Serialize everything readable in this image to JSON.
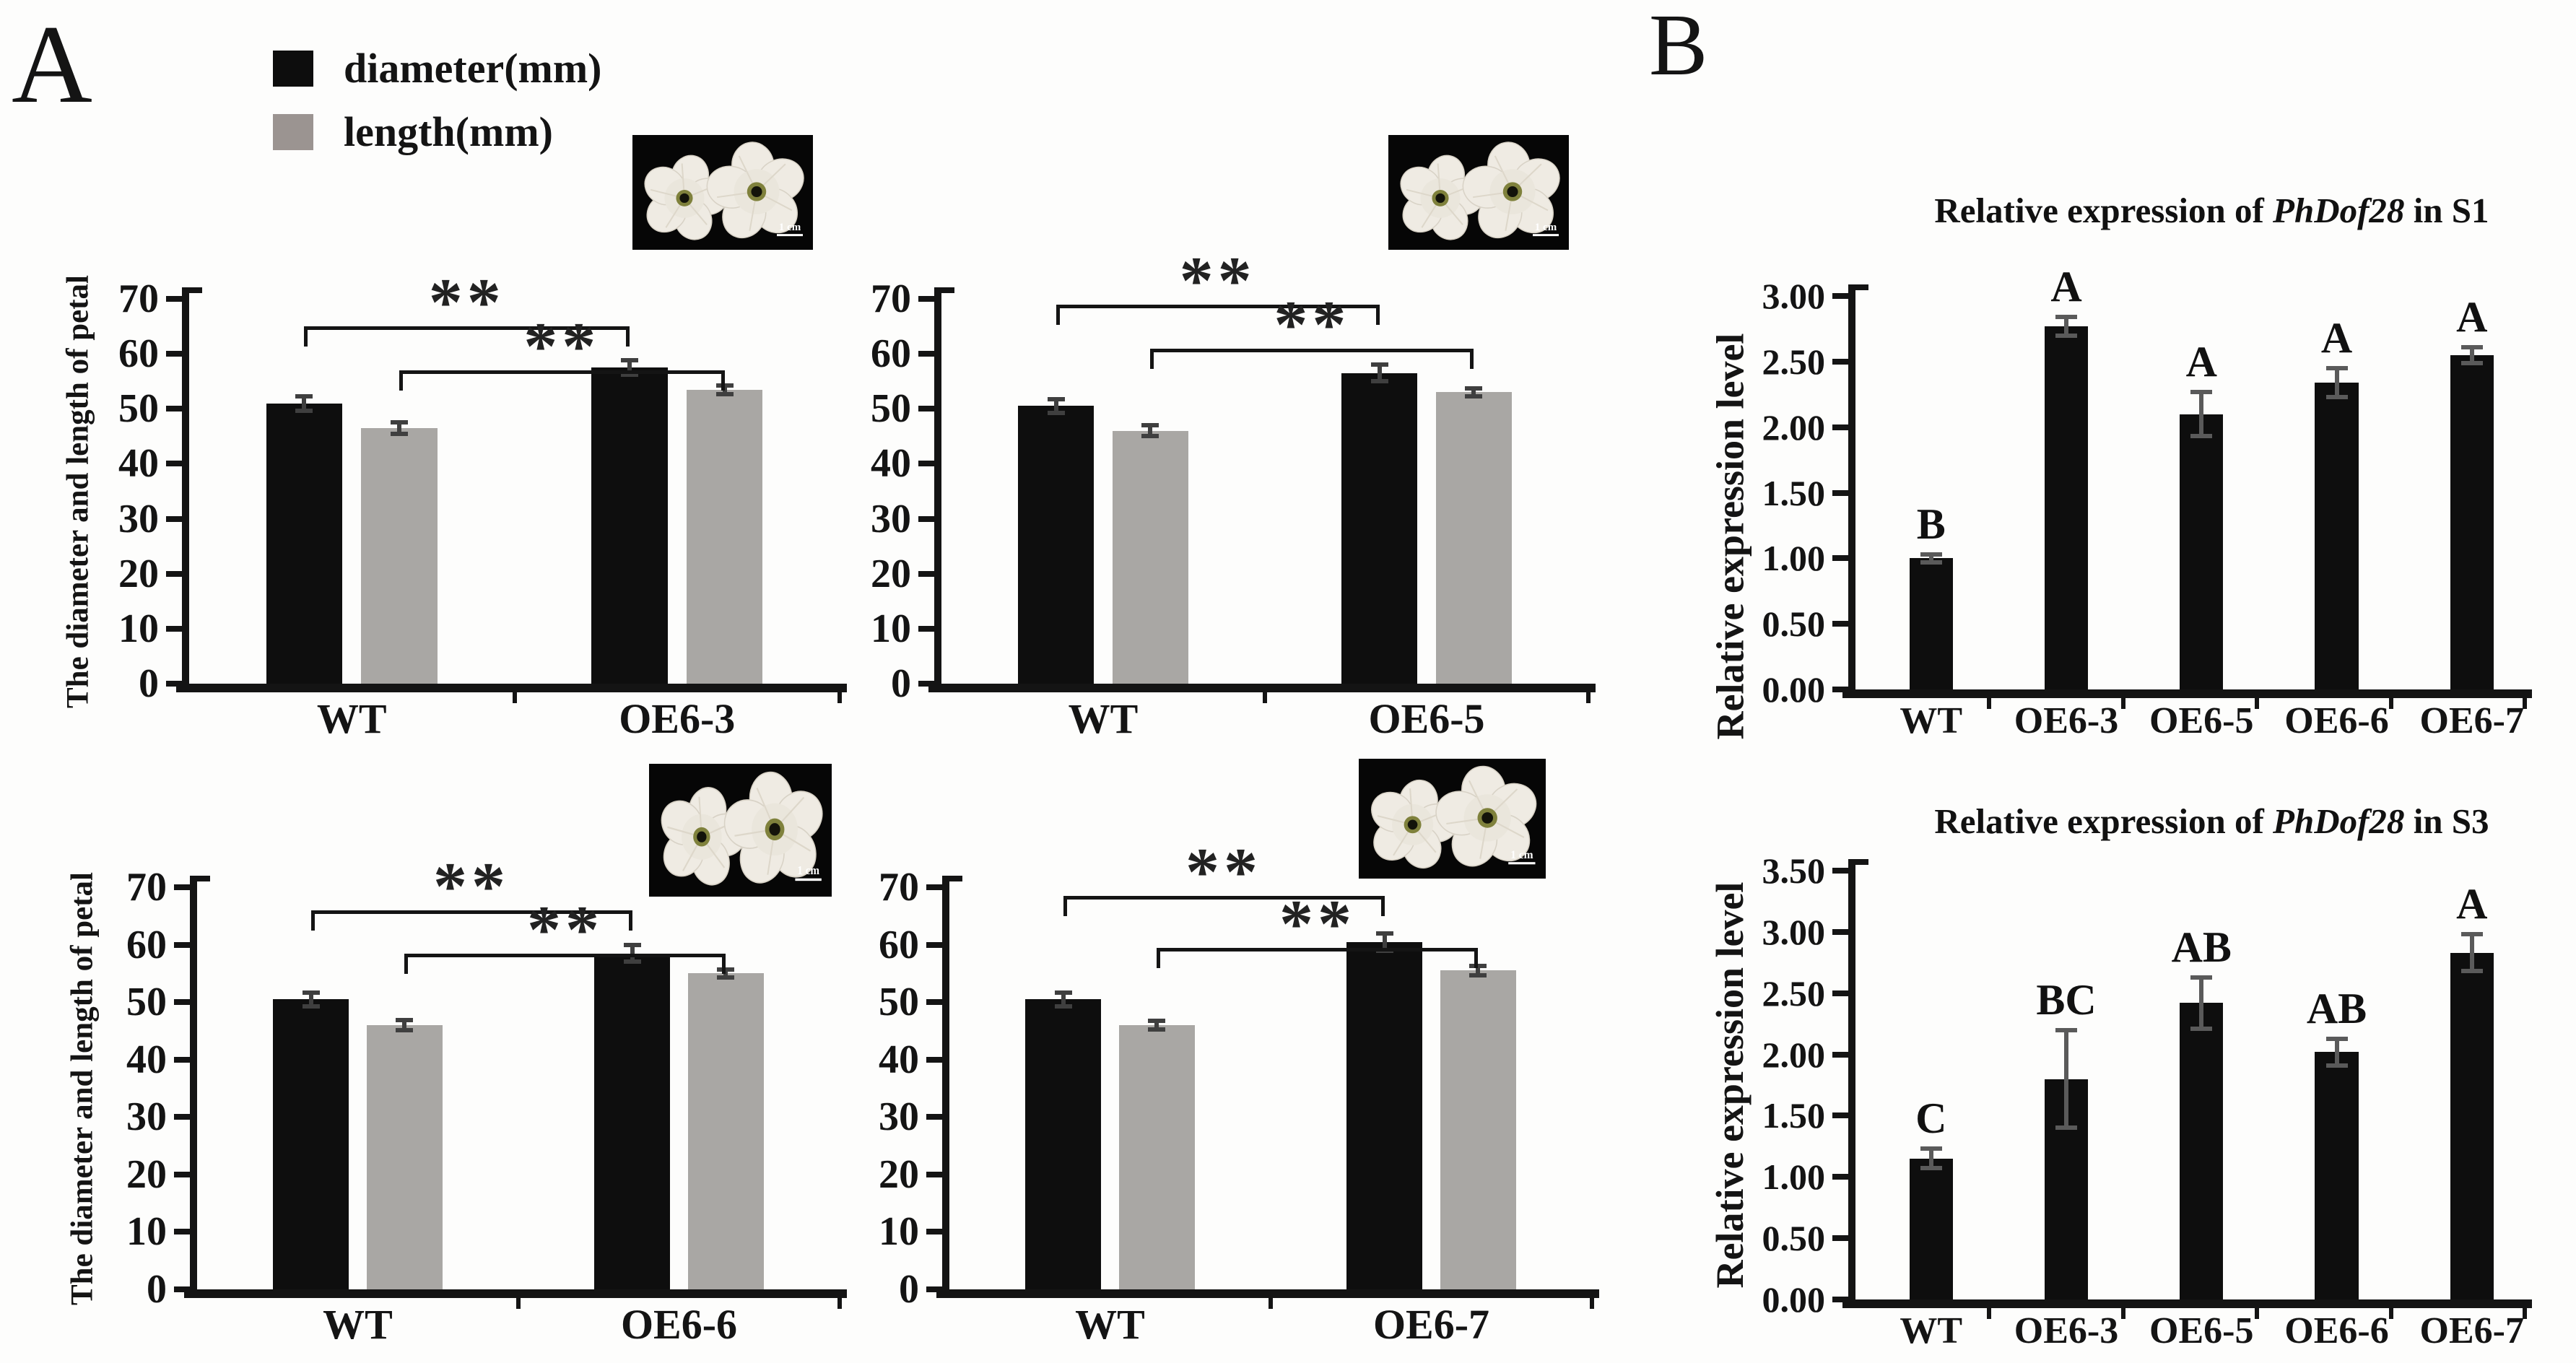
{
  "panel_a": {
    "label": "A",
    "ylabel": "The diameter and length of petal",
    "inset_scale_label": "1 cm",
    "legend": [
      {
        "label": "diameter(mm)",
        "color": "#0d0d0d"
      },
      {
        "label": "length(mm)",
        "color": "#9b9491"
      }
    ]
  },
  "panel_b": {
    "label": "B",
    "ylabel": "Relative expression level"
  },
  "chart_data": [
    {
      "id": "petal-OE6-3",
      "type": "bar",
      "panel": "A",
      "categories": [
        "WT",
        "OE6-3"
      ],
      "series": [
        {
          "name": "diameter(mm)",
          "color": "#0e0e0e",
          "values": [
            51,
            57.5
          ],
          "errors": [
            1.3,
            1.3
          ]
        },
        {
          "name": "length(mm)",
          "color": "#a9a7a4",
          "values": [
            46.5,
            53.5
          ],
          "errors": [
            1.0,
            0.8
          ]
        }
      ],
      "ylabel": "The diameter and length of petal",
      "ylim": [
        0,
        70
      ],
      "yticks": [
        0,
        10,
        20,
        30,
        40,
        50,
        60,
        70
      ],
      "significance": [
        {
          "series": 0,
          "y": 65,
          "label": "**"
        },
        {
          "series": 1,
          "y": 57,
          "label": "**"
        }
      ]
    },
    {
      "id": "petal-OE6-5",
      "type": "bar",
      "panel": "A",
      "categories": [
        "WT",
        "OE6-5"
      ],
      "series": [
        {
          "name": "diameter(mm)",
          "color": "#0e0e0e",
          "values": [
            50.5,
            56.5
          ],
          "errors": [
            1.2,
            1.5
          ]
        },
        {
          "name": "length(mm)",
          "color": "#a9a7a4",
          "values": [
            46,
            53
          ],
          "errors": [
            1.0,
            0.7
          ]
        }
      ],
      "ylabel": "The diameter and length of petal",
      "ylim": [
        0,
        70
      ],
      "yticks": [
        0,
        10,
        20,
        30,
        40,
        50,
        60,
        70
      ],
      "significance": [
        {
          "series": 0,
          "y": 69,
          "label": "**"
        },
        {
          "series": 1,
          "y": 61,
          "label": "**"
        }
      ]
    },
    {
      "id": "petal-OE6-6",
      "type": "bar",
      "panel": "A",
      "categories": [
        "WT",
        "OE6-6"
      ],
      "series": [
        {
          "name": "diameter(mm)",
          "color": "#0e0e0e",
          "values": [
            50.5,
            58.5
          ],
          "errors": [
            1.2,
            1.5
          ]
        },
        {
          "name": "length(mm)",
          "color": "#a9a7a4",
          "values": [
            46,
            55
          ],
          "errors": [
            0.9,
            0.7
          ]
        }
      ],
      "ylabel": "The diameter and length of petal",
      "ylim": [
        0,
        70
      ],
      "yticks": [
        0,
        10,
        20,
        30,
        40,
        50,
        60,
        70
      ],
      "significance": [
        {
          "series": 0,
          "y": 66,
          "label": "**"
        },
        {
          "series": 1,
          "y": 58.5,
          "label": "**"
        }
      ]
    },
    {
      "id": "petal-OE6-7",
      "type": "bar",
      "panel": "A",
      "categories": [
        "WT",
        "OE6-7"
      ],
      "series": [
        {
          "name": "diameter(mm)",
          "color": "#0e0e0e",
          "values": [
            50.5,
            60.5
          ],
          "errors": [
            1.2,
            1.5
          ]
        },
        {
          "name": "length(mm)",
          "color": "#a9a7a4",
          "values": [
            46,
            55.5
          ],
          "errors": [
            0.8,
            0.8
          ]
        }
      ],
      "ylabel": "The diameter and length of petal",
      "ylim": [
        0,
        70
      ],
      "yticks": [
        0,
        10,
        20,
        30,
        40,
        50,
        60,
        70
      ],
      "significance": [
        {
          "series": 0,
          "y": 68.5,
          "label": "**"
        },
        {
          "series": 1,
          "y": 59.5,
          "label": "**"
        }
      ]
    },
    {
      "id": "expression-S1",
      "type": "bar",
      "panel": "B",
      "title": {
        "prefix": "Relative expression of ",
        "gene": "PhDof28",
        "suffix": " in S1"
      },
      "categories": [
        "WT",
        "OE6-3",
        "OE6-5",
        "OE6-6",
        "OE6-7"
      ],
      "values": [
        1.0,
        2.77,
        2.1,
        2.34,
        2.55
      ],
      "errors": [
        0.03,
        0.07,
        0.17,
        0.11,
        0.06
      ],
      "letters": [
        "B",
        "A",
        "A",
        "A",
        "A"
      ],
      "bar_color": "#0e0e0e",
      "ylabel": "Relative expression level",
      "ylim": [
        0,
        3.0
      ],
      "yticks": [
        "0.00",
        "0.50",
        "1.00",
        "1.50",
        "2.00",
        "2.50",
        "3.00"
      ]
    },
    {
      "id": "expression-S3",
      "type": "bar",
      "panel": "B",
      "title": {
        "prefix": "Relative expression of ",
        "gene": "PhDof28",
        "suffix": " in S3"
      },
      "categories": [
        "WT",
        "OE6-3",
        "OE6-5",
        "OE6-6",
        "OE6-7"
      ],
      "values": [
        1.15,
        1.8,
        2.42,
        2.02,
        2.83
      ],
      "errors": [
        0.08,
        0.4,
        0.21,
        0.11,
        0.15
      ],
      "letters": [
        "C",
        "BC",
        "AB",
        "AB",
        "A"
      ],
      "bar_color": "#0e0e0e",
      "ylabel": "Relative expression level",
      "ylim": [
        0,
        3.5
      ],
      "yticks": [
        "0.00",
        "0.50",
        "1.00",
        "1.50",
        "2.00",
        "2.50",
        "3.00",
        "3.50"
      ]
    }
  ]
}
